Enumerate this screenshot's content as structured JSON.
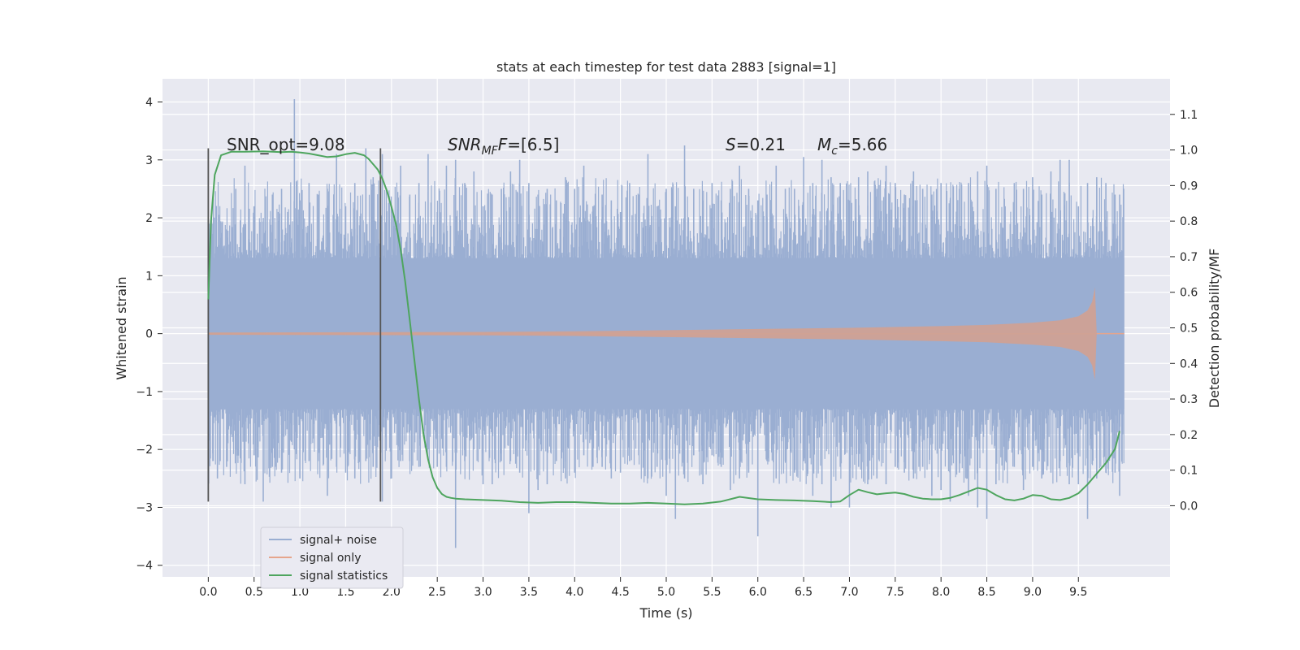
{
  "chart_data": {
    "type": "line",
    "title": "stats at each timestep for test data 2883 [signal=1]",
    "xlabel": "Time (s)",
    "ylabel": "Whitened strain",
    "ylabel_right": "Detection probability/MF",
    "xlim": [
      -0.5,
      10.5
    ],
    "ylim": [
      -4.2,
      4.4
    ],
    "ylim_right": [
      -0.2,
      1.2
    ],
    "x_ticks": [
      "0.0",
      "0.5",
      "1.0",
      "1.5",
      "2.0",
      "2.5",
      "3.0",
      "3.5",
      "4.0",
      "4.5",
      "5.0",
      "5.5",
      "6.0",
      "6.5",
      "7.0",
      "7.5",
      "8.0",
      "8.5",
      "9.0",
      "9.5"
    ],
    "x_tick_values": [
      0.0,
      0.5,
      1.0,
      1.5,
      2.0,
      2.5,
      3.0,
      3.5,
      4.0,
      4.5,
      5.0,
      5.5,
      6.0,
      6.5,
      7.0,
      7.5,
      8.0,
      8.5,
      9.0,
      9.5
    ],
    "y_ticks": [
      "4",
      "3",
      "2",
      "1",
      "0",
      "−1",
      "−2",
      "−3",
      "−4"
    ],
    "y_tick_values": [
      4,
      3,
      2,
      1,
      0,
      -1,
      -2,
      -3,
      -4
    ],
    "y_right_ticks": [
      "1.1",
      "1.0",
      "0.9",
      "0.8",
      "0.7",
      "0.6",
      "0.5",
      "0.4",
      "0.3",
      "0.2",
      "0.1",
      "0.0"
    ],
    "y_right_tick_values": [
      1.1,
      1.0,
      0.9,
      0.8,
      0.7,
      0.6,
      0.5,
      0.4,
      0.3,
      0.2,
      0.1,
      0.0
    ],
    "annotations": {
      "snr_opt": "SNR_opt=9.08",
      "snr_mf_main": "SNR",
      "snr_mf_sub": "MF",
      "snr_mf_rest": "=[6.5]",
      "s_main": "S",
      "s_rest": "=0.21",
      "mc_main": "M",
      "mc_sub": "c",
      "mc_rest": "=5.66"
    },
    "vertical_lines": [
      {
        "x": 0.0,
        "ymin": -2.9,
        "ymax": 3.2
      },
      {
        "x": 1.88,
        "ymin": -2.9,
        "ymax": 3.2
      }
    ],
    "series": [
      {
        "name": "signal+ noise",
        "color": "#9aaed2",
        "band_envelope": {
          "x": [
            0.0,
            10.0
          ],
          "upper": 1.3,
          "lower": -1.3
        },
        "spikes": [
          [
            0.05,
            1.9,
            -2.2
          ],
          [
            0.1,
            1.5,
            -2.5
          ],
          [
            0.2,
            1.8,
            -2.3
          ],
          [
            0.3,
            2.5,
            -2.0
          ],
          [
            0.4,
            2.9,
            -2.6
          ],
          [
            0.5,
            2.2,
            -2.1
          ],
          [
            0.6,
            2.0,
            -2.9
          ],
          [
            0.7,
            2.4,
            -2.3
          ],
          [
            0.8,
            2.5,
            -2.4
          ],
          [
            0.94,
            4.05,
            -2.0
          ],
          [
            1.0,
            2.3,
            -2.5
          ],
          [
            1.1,
            2.6,
            -2.2
          ],
          [
            1.2,
            2.4,
            -2.2
          ],
          [
            1.3,
            2.5,
            -2.8
          ],
          [
            1.4,
            3.1,
            -2.3
          ],
          [
            1.5,
            2.2,
            -2.4
          ],
          [
            1.6,
            2.6,
            -2.5
          ],
          [
            1.72,
            3.2,
            -2.2
          ],
          [
            1.8,
            2.7,
            -2.3
          ],
          [
            1.9,
            3.1,
            -2.9
          ],
          [
            2.0,
            2.2,
            -2.5
          ],
          [
            2.1,
            2.9,
            -2.2
          ],
          [
            2.2,
            2.4,
            -2.2
          ],
          [
            2.3,
            2.6,
            -2.3
          ],
          [
            2.4,
            3.1,
            -2.0
          ],
          [
            2.5,
            2.1,
            -2.3
          ],
          [
            2.6,
            2.9,
            -2.3
          ],
          [
            2.7,
            3.0,
            -3.7
          ],
          [
            2.8,
            2.6,
            -2.2
          ],
          [
            2.9,
            2.8,
            -2.0
          ],
          [
            3.0,
            2.2,
            -2.6
          ],
          [
            3.1,
            2.4,
            -2.6
          ],
          [
            3.2,
            2.5,
            -2.2
          ],
          [
            3.3,
            2.8,
            -2.2
          ],
          [
            3.4,
            3.0,
            -2.4
          ],
          [
            3.5,
            2.6,
            -3.1
          ],
          [
            3.6,
            2.4,
            -2.7
          ],
          [
            3.7,
            2.5,
            -2.6
          ],
          [
            3.8,
            2.3,
            -2.2
          ],
          [
            3.9,
            2.7,
            -2.5
          ],
          [
            4.0,
            2.5,
            -2.4
          ],
          [
            4.1,
            2.9,
            -2.1
          ],
          [
            4.2,
            2.2,
            -2.3
          ],
          [
            4.3,
            2.4,
            -2.3
          ],
          [
            4.4,
            2.3,
            -2.5
          ],
          [
            4.5,
            2.1,
            -2.4
          ],
          [
            4.6,
            2.6,
            -2.2
          ],
          [
            4.7,
            2.4,
            -2.1
          ],
          [
            4.8,
            3.1,
            -2.5
          ],
          [
            4.9,
            2.2,
            -2.3
          ],
          [
            5.0,
            2.5,
            -2.8
          ],
          [
            5.1,
            2.2,
            -3.2
          ],
          [
            5.2,
            3.25,
            -2.5
          ],
          [
            5.3,
            2.5,
            -2.1
          ],
          [
            5.4,
            2.3,
            -2.6
          ],
          [
            5.5,
            2.6,
            -2.1
          ],
          [
            5.6,
            2.3,
            -2.3
          ],
          [
            5.7,
            2.5,
            -2.7
          ],
          [
            5.8,
            2.9,
            -2.5
          ],
          [
            5.9,
            2.5,
            -2.4
          ],
          [
            6.0,
            2.3,
            -3.5
          ],
          [
            6.1,
            2.4,
            -2.2
          ],
          [
            6.2,
            2.9,
            -2.5
          ],
          [
            6.3,
            2.5,
            -2.2
          ],
          [
            6.4,
            2.5,
            -2.4
          ],
          [
            6.5,
            3.05,
            -2.2
          ],
          [
            6.6,
            2.6,
            -2.8
          ],
          [
            6.7,
            3.0,
            -2.6
          ],
          [
            6.8,
            2.7,
            -3.0
          ],
          [
            6.9,
            2.6,
            -2.3
          ],
          [
            7.0,
            2.3,
            -3.0
          ],
          [
            7.1,
            2.7,
            -2.3
          ],
          [
            7.2,
            2.8,
            -2.6
          ],
          [
            7.3,
            2.5,
            -2.5
          ],
          [
            7.4,
            2.9,
            -2.6
          ],
          [
            7.5,
            2.6,
            -2.3
          ],
          [
            7.6,
            2.4,
            -2.4
          ],
          [
            7.7,
            2.8,
            -2.5
          ],
          [
            7.8,
            2.5,
            -2.3
          ],
          [
            7.9,
            2.4,
            -2.8
          ],
          [
            8.0,
            2.6,
            -2.7
          ],
          [
            8.1,
            2.3,
            -2.9
          ],
          [
            8.2,
            2.5,
            -2.4
          ],
          [
            8.3,
            2.6,
            -2.8
          ],
          [
            8.4,
            2.8,
            -3.0
          ],
          [
            8.5,
            2.9,
            -3.2
          ],
          [
            8.6,
            2.5,
            -2.6
          ],
          [
            8.7,
            2.2,
            -2.2
          ],
          [
            8.8,
            2.6,
            -2.3
          ],
          [
            8.9,
            2.5,
            -2.7
          ],
          [
            9.0,
            2.7,
            -2.3
          ],
          [
            9.1,
            2.4,
            -2.5
          ],
          [
            9.2,
            2.8,
            -2.4
          ],
          [
            9.3,
            3.0,
            -2.2
          ],
          [
            9.4,
            3.0,
            -2.6
          ],
          [
            9.5,
            2.2,
            -2.6
          ],
          [
            9.6,
            2.6,
            -3.2
          ],
          [
            9.7,
            2.7,
            -2.5
          ],
          [
            9.8,
            2.6,
            -2.4
          ],
          [
            9.9,
            2.4,
            -2.4
          ],
          [
            9.95,
            2.4,
            -2.8
          ]
        ]
      },
      {
        "name": "signal only",
        "color": "#e6a58c",
        "fill_color": "#cfa195",
        "envelope": {
          "x": [
            0.0,
            3.0,
            4.0,
            5.0,
            6.0,
            7.0,
            8.0,
            8.5,
            9.0,
            9.3,
            9.5,
            9.6,
            9.65,
            9.68,
            9.7
          ],
          "amp": [
            0.02,
            0.03,
            0.04,
            0.06,
            0.08,
            0.1,
            0.13,
            0.15,
            0.19,
            0.23,
            0.3,
            0.4,
            0.55,
            0.8,
            0.0
          ]
        },
        "line_x": [
          0.0,
          10.0
        ],
        "line_y": 0
      },
      {
        "name": "signal statistics",
        "color": "#4ea55e",
        "x": [
          0.0,
          0.03,
          0.07,
          0.14,
          0.25,
          0.4,
          0.6,
          0.8,
          0.9,
          1.0,
          1.1,
          1.2,
          1.3,
          1.4,
          1.5,
          1.6,
          1.7,
          1.75,
          1.8,
          1.85,
          1.9,
          1.95,
          2.0,
          2.05,
          2.1,
          2.15,
          2.2,
          2.25,
          2.3,
          2.35,
          2.4,
          2.45,
          2.5,
          2.55,
          2.6,
          2.65,
          2.7,
          2.8,
          3.0,
          3.2,
          3.4,
          3.6,
          3.8,
          4.0,
          4.2,
          4.4,
          4.6,
          4.8,
          5.0,
          5.2,
          5.4,
          5.6,
          5.8,
          6.0,
          6.2,
          6.4,
          6.6,
          6.8,
          6.9,
          7.0,
          7.1,
          7.2,
          7.3,
          7.4,
          7.5,
          7.6,
          7.7,
          7.8,
          7.9,
          8.0,
          8.1,
          8.2,
          8.3,
          8.4,
          8.5,
          8.6,
          8.7,
          8.8,
          8.9,
          9.0,
          9.1,
          9.2,
          9.3,
          9.4,
          9.5,
          9.6,
          9.7,
          9.8,
          9.9,
          9.95
        ],
        "y": [
          0.58,
          0.8,
          0.93,
          0.985,
          0.995,
          0.995,
          0.996,
          0.994,
          0.995,
          0.993,
          0.99,
          0.985,
          0.98,
          0.982,
          0.988,
          0.992,
          0.985,
          0.975,
          0.96,
          0.945,
          0.92,
          0.885,
          0.84,
          0.79,
          0.72,
          0.63,
          0.52,
          0.41,
          0.3,
          0.2,
          0.13,
          0.08,
          0.05,
          0.033,
          0.025,
          0.022,
          0.02,
          0.018,
          0.016,
          0.014,
          0.01,
          0.008,
          0.01,
          0.01,
          0.008,
          0.006,
          0.006,
          0.008,
          0.006,
          0.004,
          0.006,
          0.012,
          0.025,
          0.018,
          0.016,
          0.015,
          0.013,
          0.01,
          0.012,
          0.03,
          0.045,
          0.038,
          0.032,
          0.035,
          0.037,
          0.033,
          0.025,
          0.02,
          0.018,
          0.018,
          0.022,
          0.03,
          0.04,
          0.05,
          0.045,
          0.03,
          0.018,
          0.015,
          0.02,
          0.03,
          0.028,
          0.018,
          0.016,
          0.022,
          0.035,
          0.06,
          0.09,
          0.12,
          0.16,
          0.21
        ]
      }
    ],
    "legend": {
      "location": "lower-left",
      "entries": [
        "signal+ noise",
        "signal only",
        "signal statistics"
      ]
    }
  },
  "colors": {
    "plot_bg": "#e8e9f1",
    "grid": "#ffffff",
    "tick": "#262626",
    "vline": "#555555"
  }
}
